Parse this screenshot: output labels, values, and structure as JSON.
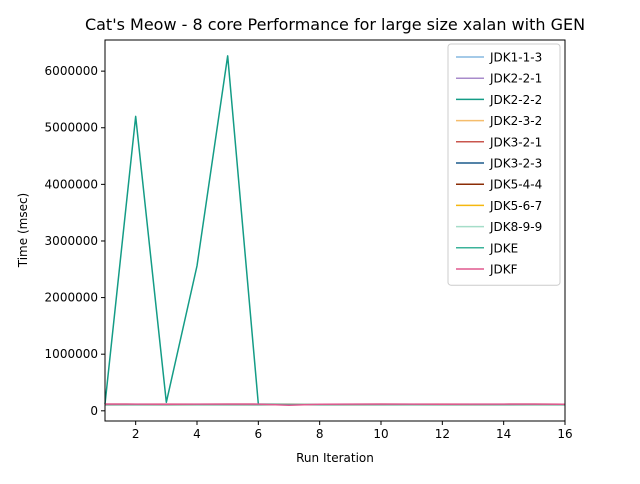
{
  "chart_data": {
    "type": "line",
    "title": "Cat's Meow - 8 core Performance for large size xalan with GEN",
    "xlabel": "Run Iteration",
    "ylabel": "Time (msec)",
    "xlim": [
      1,
      16
    ],
    "ylim": [
      -180000,
      6550000
    ],
    "xticks": [
      2,
      4,
      6,
      8,
      10,
      12,
      14,
      16
    ],
    "yticks": [
      0,
      1000000,
      2000000,
      3000000,
      4000000,
      5000000,
      6000000
    ],
    "legend_position": "top-right",
    "grid": false,
    "x": [
      1,
      2,
      3,
      4,
      5,
      6,
      7,
      8,
      9,
      10,
      11,
      12,
      13,
      14,
      15,
      16
    ],
    "series": [
      {
        "name": "JDK1-1-3",
        "color": "#85b9e0",
        "values": [
          115000,
          115000,
          113000,
          114000,
          112000,
          114000,
          113000,
          115000,
          114000,
          116000,
          115000,
          113000,
          114000,
          115000,
          114000,
          113000
        ]
      },
      {
        "name": "JDK2-2-1",
        "color": "#a88bcb",
        "values": [
          112000,
          114000,
          115000,
          113000,
          114000,
          112000,
          114000,
          113000,
          115000,
          114000,
          113000,
          114000,
          112000,
          114000,
          113000,
          114000
        ]
      },
      {
        "name": "JDK2-2-2",
        "color": "#149c86",
        "values": [
          120000,
          5200000,
          150000,
          2560000,
          6270000,
          120000,
          116000,
          115000,
          114000,
          116000,
          117000,
          115000,
          114000,
          115000,
          114000,
          115000
        ]
      },
      {
        "name": "JDK2-3-2",
        "color": "#f5bd6c",
        "values": [
          110000,
          112000,
          111000,
          113000,
          112000,
          111000,
          112000,
          113000,
          111000,
          112000,
          113000,
          111000,
          112000,
          111000,
          112000,
          111000
        ]
      },
      {
        "name": "JDK3-2-1",
        "color": "#c9564e",
        "values": [
          118000,
          117000,
          119000,
          116000,
          118000,
          117000,
          118000,
          117000,
          116000,
          118000,
          117000,
          119000,
          116000,
          117000,
          118000,
          117000
        ]
      },
      {
        "name": "JDK3-2-3",
        "color": "#1c5a8c",
        "values": [
          108000,
          109000,
          108000,
          110000,
          109000,
          108000,
          109000,
          108000,
          110000,
          109000,
          108000,
          109000,
          110000,
          108000,
          109000,
          108000
        ]
      },
      {
        "name": "JDK5-4-4",
        "color": "#8b2c06",
        "values": [
          113000,
          112000,
          113000,
          111000,
          112000,
          113000,
          112000,
          111000,
          113000,
          112000,
          111000,
          112000,
          113000,
          112000,
          111000,
          112000
        ]
      },
      {
        "name": "JDK5-6-7",
        "color": "#f5b80f",
        "values": [
          114000,
          113000,
          114000,
          112000,
          113000,
          114000,
          112000,
          113000,
          114000,
          113000,
          112000,
          113000,
          114000,
          113000,
          112000,
          113000
        ]
      },
      {
        "name": "JDK8-9-9",
        "color": "#a5ddc9",
        "values": [
          116000,
          115000,
          116000,
          114000,
          115000,
          116000,
          114000,
          115000,
          116000,
          115000,
          114000,
          115000,
          116000,
          115000,
          114000,
          115000
        ]
      },
      {
        "name": "JDKE",
        "color": "#3bb39a",
        "values": [
          111000,
          110000,
          111000,
          109000,
          110000,
          111000,
          109000,
          110000,
          111000,
          110000,
          109000,
          110000,
          111000,
          110000,
          109000,
          110000
        ]
      },
      {
        "name": "JDKF",
        "color": "#e0588e",
        "values": [
          119000,
          118000,
          117000,
          118000,
          119000,
          118000,
          98000,
          117000,
          118000,
          119000,
          118000,
          117000,
          118000,
          119000,
          118000,
          117000
        ]
      }
    ]
  }
}
